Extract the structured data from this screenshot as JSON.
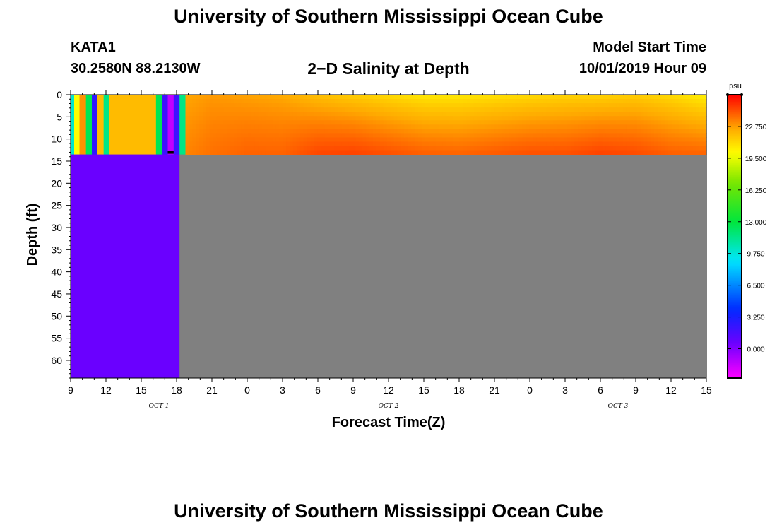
{
  "header": {
    "title_top": "University of Southern Mississippi Ocean Cube",
    "title_bottom": "University of Southern Mississippi Ocean Cube",
    "station_id": "KATA1",
    "station_coords": "30.2580N 88.2130W",
    "plot_title": "2−D Salinity at Depth",
    "model_start_label": "Model Start Time",
    "model_start_value": "10/01/2019 Hour 09"
  },
  "chart_data": {
    "type": "heatmap",
    "title": "2−D Salinity at Depth",
    "xlabel": "Forecast Time(Z)",
    "ylabel": "Depth (ft)",
    "x_tick_labels": [
      "9",
      "12",
      "15",
      "18",
      "21",
      "0",
      "3",
      "6",
      "9",
      "12",
      "15",
      "18",
      "21",
      "0",
      "3",
      "6",
      "9",
      "12",
      "15"
    ],
    "x_range_hours": [
      0,
      54
    ],
    "month_labels": [
      {
        "label": "OCT 1",
        "hour": 7.5
      },
      {
        "label": "OCT 2",
        "hour": 27
      },
      {
        "label": "OCT 3",
        "hour": 46.5
      }
    ],
    "y_ticks": [
      0,
      5,
      10,
      15,
      20,
      25,
      30,
      35,
      40,
      45,
      50,
      55,
      60
    ],
    "y_range_ft": [
      0,
      64
    ],
    "data_depth_limit_ft": 13.5,
    "no_data_color": "#808080",
    "early_fill_color": "#6a00ff",
    "early_fill_until_hour": 9.25,
    "early_strips": [
      {
        "start": 0.0,
        "end": 0.3,
        "value": 10.0
      },
      {
        "start": 0.3,
        "end": 0.75,
        "value": 20.0
      },
      {
        "start": 0.75,
        "end": 1.3,
        "value": 23.0
      },
      {
        "start": 1.3,
        "end": 1.8,
        "value": 12.5
      },
      {
        "start": 1.8,
        "end": 2.25,
        "value": 2.5
      },
      {
        "start": 2.25,
        "end": 2.8,
        "value": 22.0
      },
      {
        "start": 2.8,
        "end": 3.25,
        "value": 11.5
      },
      {
        "start": 3.25,
        "end": 7.25,
        "value": 22.0
      },
      {
        "start": 7.25,
        "end": 7.75,
        "value": 12.5
      },
      {
        "start": 7.75,
        "end": 8.25,
        "value": 2.0
      },
      {
        "start": 8.25,
        "end": 8.75,
        "value": -1.5
      },
      {
        "start": 8.75,
        "end": 9.25,
        "value": 2.0
      },
      {
        "start": 9.25,
        "end": 9.75,
        "value": 11.5
      }
    ],
    "field_start_hour": 9.75,
    "field_profile": {
      "hours": [
        9.75,
        12,
        15,
        18,
        21,
        24,
        27,
        30,
        33,
        36,
        39,
        42,
        45,
        48,
        51,
        54
      ],
      "surface_psu": [
        22.5,
        22.8,
        22.6,
        22.4,
        21.8,
        21.4,
        21.0,
        20.6,
        20.6,
        20.8,
        21.0,
        21.2,
        21.2,
        21.4,
        21.0,
        20.3
      ],
      "bottom_psu": [
        23.3,
        23.7,
        24.0,
        24.0,
        24.6,
        24.7,
        24.4,
        24.1,
        24.0,
        24.2,
        24.4,
        24.4,
        24.7,
        24.5,
        24.1,
        24.0
      ]
    },
    "colorbar": {
      "unit": "psu",
      "range": [
        -3.0,
        26.0
      ],
      "tick_values": [
        0.0,
        3.25,
        6.5,
        9.75,
        13.0,
        16.25,
        19.5,
        22.75
      ],
      "tick_labels": [
        "0.000",
        "3.250",
        "6.500",
        "9.750",
        "13.000",
        "16.250",
        "19.500",
        "22.750"
      ]
    }
  }
}
